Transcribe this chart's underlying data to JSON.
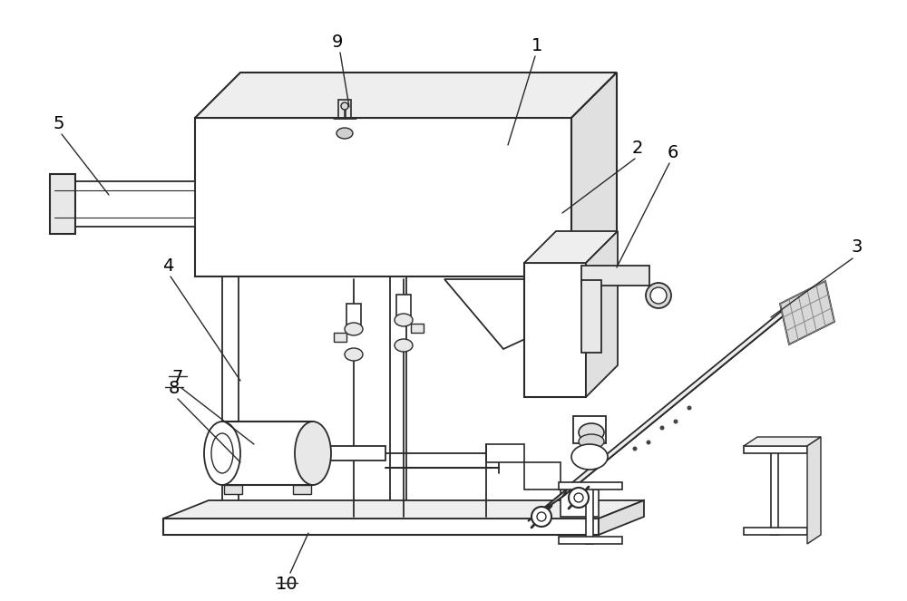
{
  "background_color": "#ffffff",
  "line_color": "#2a2a2a",
  "fig_width": 10.0,
  "fig_height": 6.63,
  "dpi": 100
}
